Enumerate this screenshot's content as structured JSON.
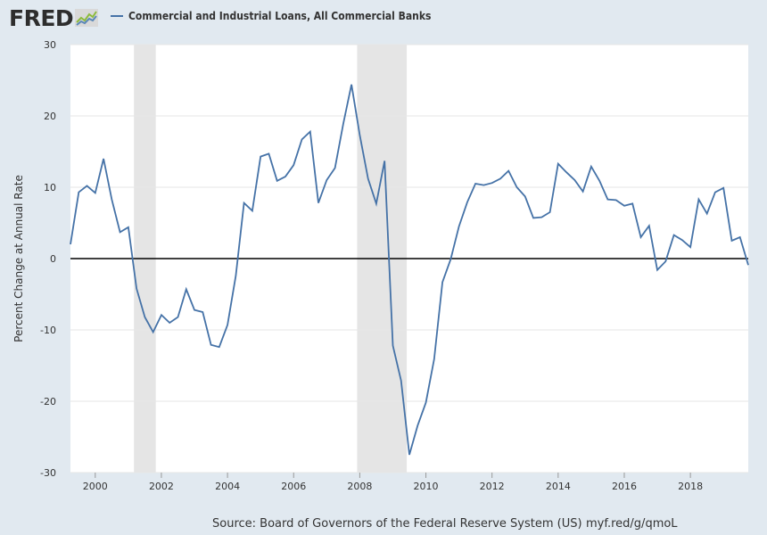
{
  "brand": {
    "name": "FRED"
  },
  "footer": {
    "source": "Source: Board of Governors of the Federal Reserve System (US)",
    "url": "myf.red/g/qmoL"
  },
  "chart_data": {
    "type": "line",
    "ylabel": "Percent Change at Annual Rate",
    "ylim": [
      -30,
      30
    ],
    "yticks": [
      -30,
      -20,
      -10,
      0,
      10,
      20,
      30
    ],
    "xlim": [
      1999.25,
      2019.75
    ],
    "xticks": [
      2000,
      2002,
      2004,
      2006,
      2008,
      2010,
      2012,
      2014,
      2016,
      2018
    ],
    "grid": true,
    "legend": "top-left",
    "colors": {
      "line": "#4572a7",
      "recession": "#e5e5e5",
      "zero": "#000000"
    },
    "recessions": [
      [
        2001.17,
        2001.83
      ],
      [
        2007.92,
        2009.42
      ]
    ],
    "series": [
      {
        "name": "Commercial and Industrial Loans, All Commercial Banks",
        "x": [
          1999.25,
          1999.5,
          1999.75,
          2000.0,
          2000.25,
          2000.5,
          2000.75,
          2001.0,
          2001.25,
          2001.5,
          2001.75,
          2002.0,
          2002.25,
          2002.5,
          2002.75,
          2003.0,
          2003.25,
          2003.5,
          2003.75,
          2004.0,
          2004.25,
          2004.5,
          2004.75,
          2005.0,
          2005.25,
          2005.5,
          2005.75,
          2006.0,
          2006.25,
          2006.5,
          2006.75,
          2007.0,
          2007.25,
          2007.5,
          2007.75,
          2008.0,
          2008.25,
          2008.5,
          2008.75,
          2009.0,
          2009.25,
          2009.5,
          2009.75,
          2010.0,
          2010.25,
          2010.5,
          2010.75,
          2011.0,
          2011.25,
          2011.5,
          2011.75,
          2012.0,
          2012.25,
          2012.5,
          2012.75,
          2013.0,
          2013.25,
          2013.5,
          2013.75,
          2014.0,
          2014.25,
          2014.5,
          2014.75,
          2015.0,
          2015.25,
          2015.5,
          2015.75,
          2016.0,
          2016.25,
          2016.5,
          2016.75,
          2017.0,
          2017.25,
          2017.5,
          2017.75,
          2018.0,
          2018.25,
          2018.5,
          2018.75,
          2019.0,
          2019.25,
          2019.5,
          2019.75
        ],
        "values": [
          2.0,
          9.3,
          10.2,
          9.2,
          14.0,
          8.3,
          3.7,
          4.4,
          -4.2,
          -8.2,
          -10.3,
          -7.9,
          -9.0,
          -8.2,
          -4.3,
          -7.2,
          -7.5,
          -12.1,
          -12.4,
          -9.3,
          -2.4,
          7.8,
          6.7,
          14.3,
          14.7,
          10.9,
          11.5,
          13.1,
          16.7,
          17.8,
          7.8,
          11.0,
          12.7,
          18.9,
          24.4,
          17.3,
          11.2,
          7.7,
          13.7,
          -12.2,
          -17.1,
          -27.5,
          -23.4,
          -20.2,
          -14.1,
          -3.3,
          -0.1,
          4.5,
          7.9,
          10.5,
          10.3,
          10.6,
          11.2,
          12.3,
          10.0,
          8.7,
          5.7,
          5.8,
          6.5,
          13.3,
          12.1,
          11.0,
          9.4,
          12.9,
          10.9,
          8.3,
          8.2,
          7.4,
          7.7,
          3.0,
          4.6,
          -1.6,
          -0.4,
          3.3,
          2.6,
          1.6,
          8.3,
          6.3,
          9.3,
          9.9,
          2.5,
          3.0,
          -0.9
        ]
      }
    ]
  }
}
